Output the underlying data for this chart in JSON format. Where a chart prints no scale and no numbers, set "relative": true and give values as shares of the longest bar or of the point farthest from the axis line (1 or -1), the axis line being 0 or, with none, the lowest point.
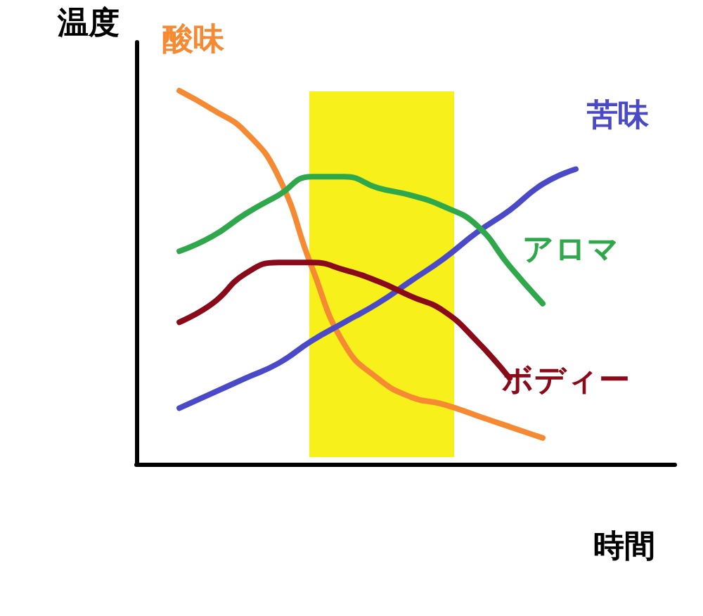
{
  "chart_data": {
    "type": "line",
    "relative": true,
    "xlabel": "時間",
    "ylabel": "温度",
    "legend": false,
    "grid": false,
    "marker": "none",
    "line_style": "solid",
    "categories": [
      null,
      null,
      null,
      null,
      null,
      null,
      null,
      null,
      null,
      null,
      null,
      null,
      null,
      null
    ],
    "series": [
      {
        "name": "酸味",
        "color": "#f58a33",
        "values": [
          1,
          0.95,
          0.89,
          0.77,
          0.53,
          0.32,
          0.23,
          0.18,
          0.16,
          0.13,
          0.1,
          0.07,
          null,
          null
        ]
      },
      {
        "name": "苦味",
        "color": "#4a4ac8",
        "values": [
          0.15,
          0.19,
          0.23,
          0.27,
          0.33,
          0.38,
          0.43,
          0.49,
          0.55,
          0.62,
          0.68,
          0.75,
          0.79,
          null
        ]
      },
      {
        "name": "アロマ",
        "color": "#2ea84a",
        "values": [
          0.57,
          0.61,
          0.67,
          0.72,
          0.77,
          0.77,
          0.74,
          0.72,
          0.69,
          0.64,
          0.53,
          0.43,
          null,
          null
        ]
      },
      {
        "name": "ボディー",
        "color": "#8b0a1a",
        "values": [
          0.38,
          0.43,
          0.51,
          0.54,
          0.54,
          0.52,
          0.49,
          0.45,
          0.41,
          0.33,
          0.23,
          null,
          null,
          null
        ]
      }
    ]
  }
}
